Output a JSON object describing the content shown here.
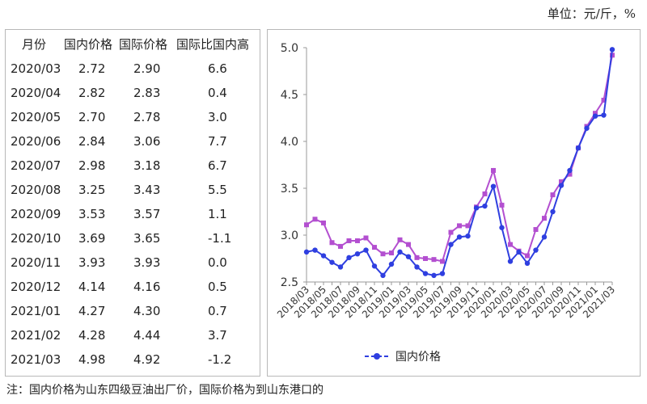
{
  "unit_label": "单位：元/斤，%",
  "table": {
    "headers": [
      "月份",
      "国内价格",
      "国际价格",
      "国际比国内高"
    ],
    "rows": [
      [
        "2020/03",
        "2.72",
        "2.90",
        "6.6"
      ],
      [
        "2020/04",
        "2.82",
        "2.83",
        "0.4"
      ],
      [
        "2020/05",
        "2.70",
        "2.78",
        "3.0"
      ],
      [
        "2020/06",
        "2.84",
        "3.06",
        "7.7"
      ],
      [
        "2020/07",
        "2.98",
        "3.18",
        "6.7"
      ],
      [
        "2020/08",
        "3.25",
        "3.43",
        "5.5"
      ],
      [
        "2020/09",
        "3.53",
        "3.57",
        "1.1"
      ],
      [
        "2020/10",
        "3.69",
        "3.65",
        "-1.1"
      ],
      [
        "2020/11",
        "3.93",
        "3.93",
        "0.0"
      ],
      [
        "2020/12",
        "4.14",
        "4.16",
        "0.5"
      ],
      [
        "2021/01",
        "4.27",
        "4.30",
        "0.7"
      ],
      [
        "2021/02",
        "4.28",
        "4.44",
        "3.7"
      ],
      [
        "2021/03",
        "4.98",
        "4.92",
        "-1.2"
      ]
    ]
  },
  "chart_data": {
    "type": "line",
    "x": [
      "2018/03",
      "2018/04",
      "2018/05",
      "2018/06",
      "2018/07",
      "2018/08",
      "2018/09",
      "2018/10",
      "2018/11",
      "2018/12",
      "2019/01",
      "2019/02",
      "2019/03",
      "2019/04",
      "2019/05",
      "2019/06",
      "2019/07",
      "2019/08",
      "2019/09",
      "2019/10",
      "2019/11",
      "2019/12",
      "2020/01",
      "2020/02",
      "2020/03",
      "2020/04",
      "2020/05",
      "2020/06",
      "2020/07",
      "2020/08",
      "2020/09",
      "2020/10",
      "2020/11",
      "2020/12",
      "2021/01",
      "2021/02",
      "2021/03"
    ],
    "xticks": [
      "2018/03",
      "2018/05",
      "2018/07",
      "2018/09",
      "2018/11",
      "2019/01",
      "2019/03",
      "2019/05",
      "2019/07",
      "2019/09",
      "2019/11",
      "2020/01",
      "2020/03",
      "2020/05",
      "2020/07",
      "2020/09",
      "2020/11",
      "2021/01",
      "2021/03"
    ],
    "yticks": [
      "2.5",
      "3.0",
      "3.5",
      "4.0",
      "4.5",
      "5.0"
    ],
    "ylim": [
      2.5,
      5.0
    ],
    "series": [
      {
        "name": "国内价格",
        "color": "#2f3fe0",
        "marker": "circle",
        "values": [
          2.82,
          2.84,
          2.78,
          2.71,
          2.66,
          2.76,
          2.8,
          2.84,
          2.67,
          2.57,
          2.69,
          2.82,
          2.77,
          2.66,
          2.59,
          2.57,
          2.59,
          2.9,
          2.98,
          2.99,
          3.29,
          3.31,
          3.52,
          3.08,
          2.72,
          2.82,
          2.7,
          2.84,
          2.98,
          3.25,
          3.53,
          3.69,
          3.93,
          4.14,
          4.27,
          4.28,
          4.98
        ]
      },
      {
        "name": "",
        "color": "#b34fd0",
        "marker": "square",
        "values": [
          3.11,
          3.17,
          3.13,
          2.92,
          2.88,
          2.94,
          2.94,
          2.97,
          2.87,
          2.8,
          2.81,
          2.95,
          2.9,
          2.76,
          2.75,
          2.74,
          2.72,
          3.03,
          3.1,
          3.1,
          3.3,
          3.44,
          3.69,
          3.32,
          2.9,
          2.83,
          2.78,
          3.06,
          3.18,
          3.43,
          3.57,
          3.65,
          3.93,
          4.16,
          4.3,
          4.44,
          4.92
        ]
      }
    ],
    "legend": {
      "label": "国内价格",
      "placement": "bottom"
    }
  },
  "note": "注：国内价格为山东四级豆油出厂价，国际价格为到山东港口的"
}
